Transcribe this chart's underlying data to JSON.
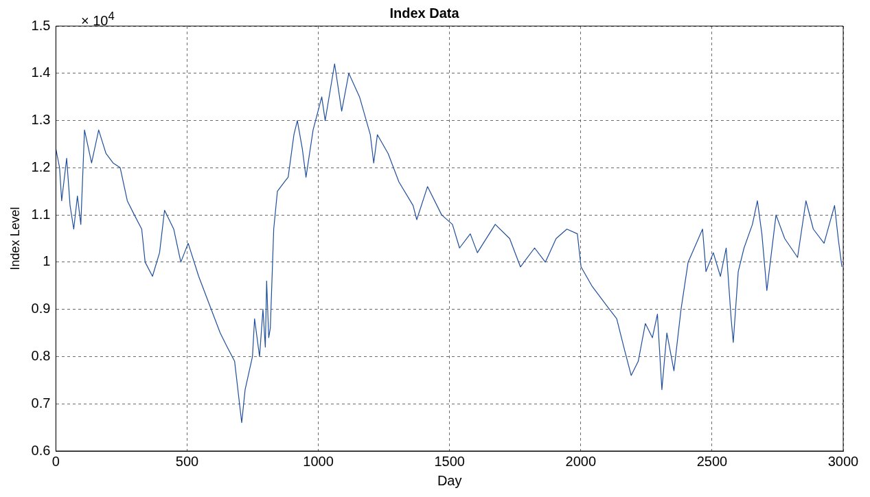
{
  "chart_data": {
    "type": "line",
    "title": "Index Data",
    "xlabel": "Day",
    "ylabel": "Index Level",
    "annotations": [
      "× 10$^{4}$"
    ],
    "xlim": [
      0,
      3000
    ],
    "xticks": [
      0,
      500,
      1000,
      1500,
      2000,
      2500,
      3000
    ],
    "ylim": [
      0.6,
      1.5
    ],
    "yticks": [
      0.6,
      0.7,
      0.8,
      0.9,
      1,
      1.1,
      1.2,
      1.3,
      1.4,
      1.5
    ],
    "grid": true,
    "legend": false,
    "marker": "none",
    "line_style": "solid",
    "series": [
      {
        "color": "#1f4e9c",
        "x": [
          0,
          14,
          22,
          41,
          54,
          68,
          82,
          95,
          109,
          136,
          163,
          191,
          218,
          245,
          272,
          299,
          327,
          340,
          368,
          395,
          414,
          449,
          476,
          504,
          544,
          585,
          626,
          653,
          681,
          708,
          721,
          749,
          757,
          776,
          789,
          798,
          803,
          811,
          817,
          830,
          844,
          871,
          885,
          907,
          920,
          939,
          953,
          980,
          1013,
          1026,
          1062,
          1089,
          1116,
          1157,
          1198,
          1211,
          1225,
          1266,
          1307,
          1361,
          1375,
          1416,
          1470,
          1511,
          1538,
          1579,
          1606,
          1674,
          1729,
          1770,
          1824,
          1865,
          1906,
          1947,
          1987,
          2001,
          2042,
          2096,
          2137,
          2164,
          2192,
          2219,
          2246,
          2273,
          2292,
          2309,
          2328,
          2355,
          2382,
          2409,
          2464,
          2477,
          2505,
          2532,
          2554,
          2573,
          2581,
          2600,
          2622,
          2654,
          2673,
          2690,
          2709,
          2744,
          2777,
          2826,
          2858,
          2886,
          2927,
          2967,
          2981,
          2995
        ],
        "values": [
          1.24,
          1.2,
          1.13,
          1.22,
          1.12,
          1.07,
          1.14,
          1.08,
          1.28,
          1.21,
          1.28,
          1.23,
          1.21,
          1.2,
          1.13,
          1.1,
          1.07,
          1.0,
          0.97,
          1.02,
          1.11,
          1.07,
          1.0,
          1.04,
          0.97,
          0.91,
          0.85,
          0.82,
          0.79,
          0.66,
          0.73,
          0.8,
          0.88,
          0.8,
          0.9,
          0.82,
          0.96,
          0.84,
          0.86,
          1.07,
          1.15,
          1.17,
          1.18,
          1.27,
          1.3,
          1.24,
          1.18,
          1.28,
          1.35,
          1.3,
          1.42,
          1.32,
          1.4,
          1.35,
          1.27,
          1.21,
          1.27,
          1.23,
          1.17,
          1.12,
          1.09,
          1.16,
          1.1,
          1.08,
          1.03,
          1.06,
          1.02,
          1.08,
          1.05,
          0.99,
          1.03,
          1.0,
          1.05,
          1.07,
          1.06,
          0.99,
          0.95,
          0.91,
          0.88,
          0.82,
          0.76,
          0.79,
          0.87,
          0.84,
          0.89,
          0.73,
          0.85,
          0.77,
          0.9,
          1.0,
          1.07,
          0.98,
          1.02,
          0.97,
          1.03,
          0.88,
          0.83,
          0.98,
          1.03,
          1.08,
          1.13,
          1.06,
          0.94,
          1.1,
          1.05,
          1.01,
          1.13,
          1.07,
          1.04,
          1.12,
          1.05,
          0.99
        ]
      }
    ]
  }
}
